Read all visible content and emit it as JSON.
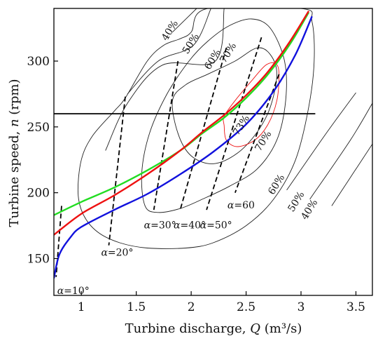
{
  "chart_data": {
    "type": "line",
    "xlabel_text": "Turbine discharge, ",
    "xlabel_var": "Q",
    "xlabel_unit": " (m³/s)",
    "ylabel_text": "Turbine speed, ",
    "ylabel_var": "n",
    "ylabel_unit": " (rpm)",
    "xlim": [
      0.75,
      3.65
    ],
    "ylim": [
      122,
      340
    ],
    "x_ticks": [
      1,
      1.5,
      2,
      2.5,
      3,
      3.5
    ],
    "x_tick_labels": [
      "1",
      "1.5",
      "2",
      "2.5",
      "3",
      "3.5"
    ],
    "y_ticks": [
      150,
      200,
      250,
      300
    ],
    "y_tick_labels": [
      "150",
      "200",
      "250",
      "300"
    ],
    "colors": {
      "green": "#22dd22",
      "red": "#ee1111",
      "blue": "#1111dd",
      "contour": "#222222",
      "contour_73": "#ee1111",
      "guide": "#000000"
    },
    "series": [
      {
        "color_key": "green",
        "points": [
          [
            0.75,
            183
          ],
          [
            1.0,
            193
          ],
          [
            1.3,
            204
          ],
          [
            1.6,
            217
          ],
          [
            1.9,
            232
          ],
          [
            2.1,
            245
          ],
          [
            2.3,
            257
          ],
          [
            2.5,
            272
          ],
          [
            2.7,
            290
          ],
          [
            2.9,
            313
          ],
          [
            3.07,
            337
          ]
        ]
      },
      {
        "color_key": "red",
        "points": [
          [
            0.75,
            168
          ],
          [
            1.0,
            184
          ],
          [
            1.3,
            198
          ],
          [
            1.6,
            214
          ],
          [
            1.9,
            232
          ],
          [
            2.1,
            246
          ],
          [
            2.3,
            259
          ],
          [
            2.5,
            274
          ],
          [
            2.7,
            292
          ],
          [
            2.9,
            315
          ],
          [
            3.07,
            338
          ]
        ]
      },
      {
        "color_key": "blue",
        "points": [
          [
            0.75,
            135
          ],
          [
            0.8,
            153
          ],
          [
            0.9,
            166
          ],
          [
            1.0,
            174
          ],
          [
            1.3,
            187
          ],
          [
            1.6,
            199
          ],
          [
            1.9,
            214
          ],
          [
            2.2,
            231
          ],
          [
            2.5,
            252
          ],
          [
            2.75,
            277
          ],
          [
            2.95,
            305
          ],
          [
            3.1,
            334
          ]
        ]
      }
    ],
    "horizontal_line": {
      "y": 260,
      "x_start": 0.75,
      "x_end": 3.13
    },
    "efficiency_contours": [
      {
        "label": "40%",
        "label_at": [
          1.83,
          322
        ],
        "label_rotate": -58,
        "upper": [
          [
            1.83,
            322
          ],
          [
            2.05,
            340
          ]
        ],
        "lower": [
          [
            3.28,
            190
          ],
          [
            3.65,
            237
          ]
        ],
        "lower_label": "40%",
        "lower_label_at": [
          3.1,
          186
        ]
      },
      {
        "label": "50%",
        "label_at": [
          2.02,
          312
        ],
        "label_rotate": -58,
        "upper": [
          [
            1.42,
            275
          ],
          [
            1.7,
            300
          ],
          [
            2.02,
            312
          ],
          [
            2.18,
            340
          ]
        ],
        "lower": [
          [
            3.08,
            195
          ],
          [
            3.45,
            240
          ],
          [
            3.65,
            268
          ]
        ],
        "lower_label": "50%",
        "lower_label_at": [
          2.98,
          192
        ]
      },
      {
        "label": "60%",
        "label_at": [
          2.22,
          300
        ],
        "label_rotate": -58,
        "upper": [
          [
            1.22,
            232
          ],
          [
            1.42,
            268
          ],
          [
            1.74,
            297
          ],
          [
            2.22,
            300
          ],
          [
            2.3,
            340
          ]
        ],
        "lower": [
          [
            2.87,
            202
          ],
          [
            3.22,
            244
          ],
          [
            3.5,
            276
          ]
        ],
        "lower_label": "60%",
        "lower_label_at": [
          2.8,
          205
        ]
      }
    ],
    "loop_contours": [
      {
        "label": "60%",
        "color_key": "contour",
        "points": [
          [
            1.3,
            262
          ],
          [
            1.4,
            272
          ],
          [
            1.6,
            300
          ],
          [
            1.75,
            312
          ],
          [
            1.9,
            317
          ],
          [
            2.0,
            322
          ],
          [
            2.15,
            340
          ],
          [
            3.0,
            340
          ],
          [
            3.1,
            330
          ],
          [
            3.12,
            300
          ],
          [
            3.07,
            265
          ],
          [
            2.95,
            225
          ],
          [
            2.75,
            195
          ],
          [
            2.5,
            175
          ],
          [
            2.2,
            162
          ],
          [
            1.95,
            158
          ],
          [
            1.6,
            158
          ],
          [
            1.35,
            162
          ],
          [
            1.15,
            170
          ],
          [
            1.02,
            183
          ],
          [
            0.97,
            200
          ],
          [
            1.0,
            225
          ],
          [
            1.1,
            243
          ],
          [
            1.3,
            262
          ]
        ]
      },
      {
        "label": "70%",
        "label_at": [
          2.36,
          305
        ],
        "label_rotate": -58,
        "color_key": "contour",
        "points": [
          [
            1.58,
            190
          ],
          [
            1.55,
            215
          ],
          [
            1.62,
            245
          ],
          [
            1.78,
            275
          ],
          [
            1.98,
            300
          ],
          [
            2.15,
            315
          ],
          [
            2.35,
            327
          ],
          [
            2.55,
            332
          ],
          [
            2.72,
            325
          ],
          [
            2.85,
            300
          ],
          [
            2.86,
            270
          ],
          [
            2.78,
            240
          ],
          [
            2.6,
            218
          ],
          [
            2.35,
            205
          ],
          [
            2.1,
            195
          ],
          [
            1.9,
            188
          ],
          [
            1.7,
            185
          ],
          [
            1.58,
            190
          ]
        ]
      },
      {
        "label": "70%",
        "label_at": [
          2.68,
          238
        ],
        "label_rotate": -58,
        "color_key": "contour",
        "points": [
          [
            1.83,
            270
          ],
          [
            1.88,
            245
          ],
          [
            2.0,
            228
          ],
          [
            2.2,
            222
          ],
          [
            2.42,
            230
          ],
          [
            2.6,
            246
          ],
          [
            2.72,
            265
          ],
          [
            2.78,
            290
          ],
          [
            2.72,
            305
          ],
          [
            2.6,
            310
          ],
          [
            2.4,
            300
          ],
          [
            2.15,
            290
          ],
          [
            1.95,
            282
          ],
          [
            1.83,
            270
          ]
        ]
      },
      {
        "label": "73%",
        "label_at": [
          2.48,
          250
        ],
        "label_rotate": -58,
        "color_key": "contour_73",
        "points": [
          [
            2.3,
            251
          ],
          [
            2.32,
            240
          ],
          [
            2.42,
            235
          ],
          [
            2.58,
            240
          ],
          [
            2.7,
            252
          ],
          [
            2.78,
            270
          ],
          [
            2.8,
            290
          ],
          [
            2.77,
            298
          ],
          [
            2.68,
            297
          ],
          [
            2.55,
            285
          ],
          [
            2.4,
            270
          ],
          [
            2.3,
            258
          ],
          [
            2.3,
            251
          ]
        ]
      }
    ],
    "alpha_lines": [
      {
        "label": "α=10°",
        "label_at": [
          0.78,
          123
        ],
        "from": [
          0.82,
          190
        ],
        "to": [
          0.77,
          136
        ]
      },
      {
        "label": "α=20°",
        "label_at": [
          1.18,
          152
        ],
        "from": [
          1.4,
          273
        ],
        "to": [
          1.25,
          160
        ]
      },
      {
        "label": "α=30°",
        "label_at": [
          1.57,
          173
        ],
        "from": [
          1.88,
          300
        ],
        "to": [
          1.66,
          187
        ]
      },
      {
        "label": "α=40°",
        "label_at": [
          1.84,
          173
        ],
        "from": [
          2.32,
          310
        ],
        "to": [
          1.9,
          187
        ]
      },
      {
        "label": "α=50°",
        "label_at": [
          2.08,
          173
        ],
        "from": [
          2.64,
          318
        ],
        "to": [
          2.14,
          187
        ]
      },
      {
        "label": "α=60",
        "label_at": [
          2.33,
          188
        ],
        "from": [
          2.8,
          290
        ],
        "to": [
          2.4,
          200
        ]
      }
    ]
  }
}
